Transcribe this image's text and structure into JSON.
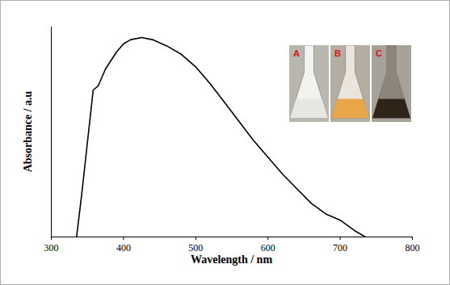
{
  "chart_data": {
    "type": "line",
    "x_label": "Wavelength / nm",
    "y_label": "Absorbance / a.u",
    "x": [
      335,
      342,
      350,
      358,
      365,
      375,
      390,
      400,
      410,
      425,
      440,
      460,
      480,
      500,
      520,
      540,
      560,
      580,
      600,
      620,
      640,
      660,
      680,
      700,
      720,
      735
    ],
    "values": [
      0,
      0.2,
      0.45,
      0.7,
      0.72,
      0.8,
      0.88,
      0.92,
      0.94,
      0.95,
      0.94,
      0.91,
      0.87,
      0.81,
      0.73,
      0.64,
      0.55,
      0.46,
      0.38,
      0.3,
      0.23,
      0.16,
      0.11,
      0.08,
      0.03,
      0
    ],
    "color": "#000000",
    "xlim": [
      300,
      800
    ],
    "xticks": [
      300,
      400,
      500,
      600,
      700,
      800
    ],
    "ylim": [
      0,
      1
    ],
    "yticks": [],
    "tick_labels": "x",
    "grid": false,
    "annotations": [
      "A",
      "B",
      "C"
    ]
  }
}
